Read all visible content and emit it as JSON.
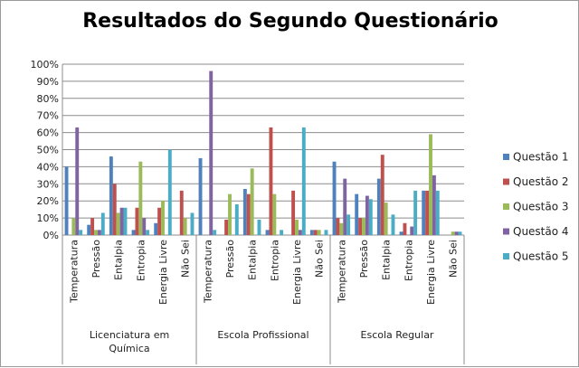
{
  "chart_data": {
    "type": "bar",
    "title": "Resultados do Segundo Questionário",
    "xlabel": "",
    "ylabel": "",
    "ylim": [
      0,
      100
    ],
    "y_ticks": [
      "0%",
      "10%",
      "20%",
      "30%",
      "40%",
      "50%",
      "60%",
      "70%",
      "80%",
      "90%",
      "100%"
    ],
    "grid": true,
    "legend_position": "right",
    "groups": [
      {
        "name": "Licenciatura em Química",
        "categories": [
          "Temperatura",
          "Pressão",
          "Entalpia",
          "Entropia",
          "Energia Livre",
          "Não Sei"
        ]
      },
      {
        "name": "Escola Profissional",
        "categories": [
          "Temperatura",
          "Pressão",
          "Entalpia",
          "Entropia",
          "Energia Livre",
          "Não Sei"
        ]
      },
      {
        "name": "Escola Regular",
        "categories": [
          "Temperatura",
          "Pressão",
          "Entalpia",
          "Entropia",
          "Energia Livre",
          "Não Sei"
        ]
      }
    ],
    "series": [
      {
        "name": "Questão 1",
        "color": "#4F81BD",
        "values": [
          40,
          6,
          46,
          3,
          7,
          0,
          45,
          0,
          27,
          3,
          0,
          3,
          43,
          24,
          33,
          2,
          26,
          0
        ]
      },
      {
        "name": "Questão 2",
        "color": "#C0504D",
        "values": [
          0,
          10,
          30,
          16,
          16,
          26,
          0,
          9,
          24,
          63,
          26,
          3,
          10,
          10,
          47,
          7,
          26,
          0
        ]
      },
      {
        "name": "Questão 3",
        "color": "#9BBB59",
        "values": [
          10,
          3,
          13,
          43,
          20,
          10,
          0,
          24,
          39,
          24,
          9,
          3,
          7,
          10,
          19,
          0,
          59,
          2
        ]
      },
      {
        "name": "Questão 4",
        "color": "#8064A2",
        "values": [
          63,
          3,
          16,
          10,
          0,
          0,
          96,
          0,
          0,
          0,
          3,
          0,
          33,
          23,
          0,
          5,
          35,
          2
        ]
      },
      {
        "name": "Questão 5",
        "color": "#4BACC6",
        "values": [
          3,
          13,
          16,
          3,
          50,
          13,
          3,
          18,
          9,
          3,
          63,
          3,
          12,
          21,
          12,
          26,
          26,
          2
        ]
      }
    ]
  }
}
